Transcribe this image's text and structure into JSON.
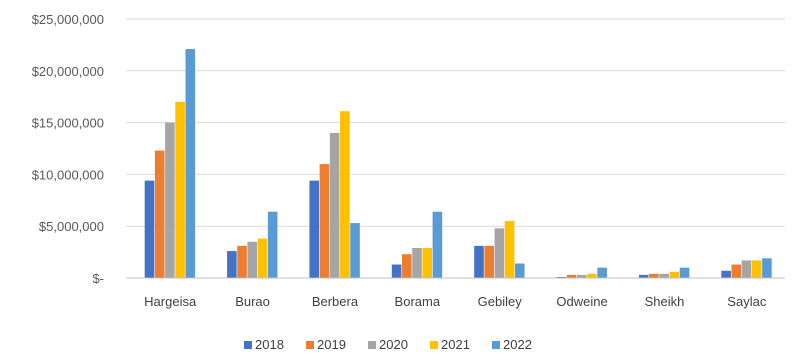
{
  "chart_data": {
    "type": "bar",
    "categories": [
      "Hargeisa",
      "Burao",
      "Berbera",
      "Borama",
      "Gebiley",
      "Odweine",
      "Sheikh",
      "Saylac"
    ],
    "series": [
      {
        "name": "2018",
        "color": "#4472c4",
        "values": [
          9400000,
          2600000,
          9400000,
          1300000,
          3100000,
          100000,
          300000,
          700000
        ]
      },
      {
        "name": "2019",
        "color": "#ed7d31",
        "values": [
          12300000,
          3100000,
          11000000,
          2300000,
          3100000,
          300000,
          400000,
          1300000
        ]
      },
      {
        "name": "2020",
        "color": "#a5a5a5",
        "values": [
          15000000,
          3500000,
          14000000,
          2900000,
          4800000,
          300000,
          400000,
          1700000
        ]
      },
      {
        "name": "2021",
        "color": "#ffc000",
        "values": [
          17000000,
          3800000,
          16100000,
          2900000,
          5500000,
          400000,
          600000,
          1700000
        ]
      },
      {
        "name": "2022",
        "color": "#5b9bd5",
        "values": [
          22100000,
          6400000,
          5300000,
          6400000,
          1400000,
          1000000,
          1000000,
          1900000
        ]
      }
    ],
    "y_ticks": [
      "$-",
      "$5,000,000",
      "$10,000,000",
      "$15,000,000",
      "$20,000,000",
      "$25,000,000"
    ],
    "ylim": [
      0,
      25000000
    ],
    "grid": true,
    "legend_position": "bottom",
    "title": "",
    "xlabel": "",
    "ylabel": ""
  }
}
